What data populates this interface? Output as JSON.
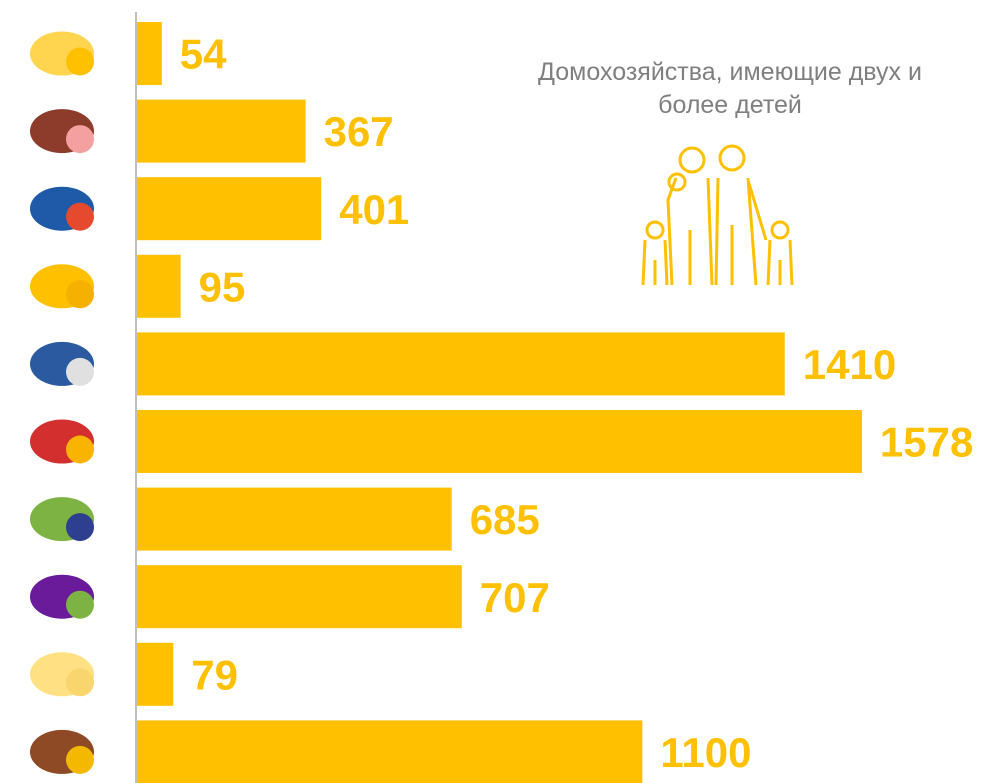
{
  "chart_data": {
    "type": "bar",
    "orientation": "horizontal",
    "title": "Домохозяйства, имеющие двух и более детей",
    "categories": [
      null,
      null,
      null,
      null,
      null,
      null,
      null,
      null,
      null,
      null
    ],
    "values": [
      54,
      367,
      401,
      95,
      1410,
      1578,
      685,
      707,
      79,
      1100
    ],
    "color": "#FFC000"
  }
}
